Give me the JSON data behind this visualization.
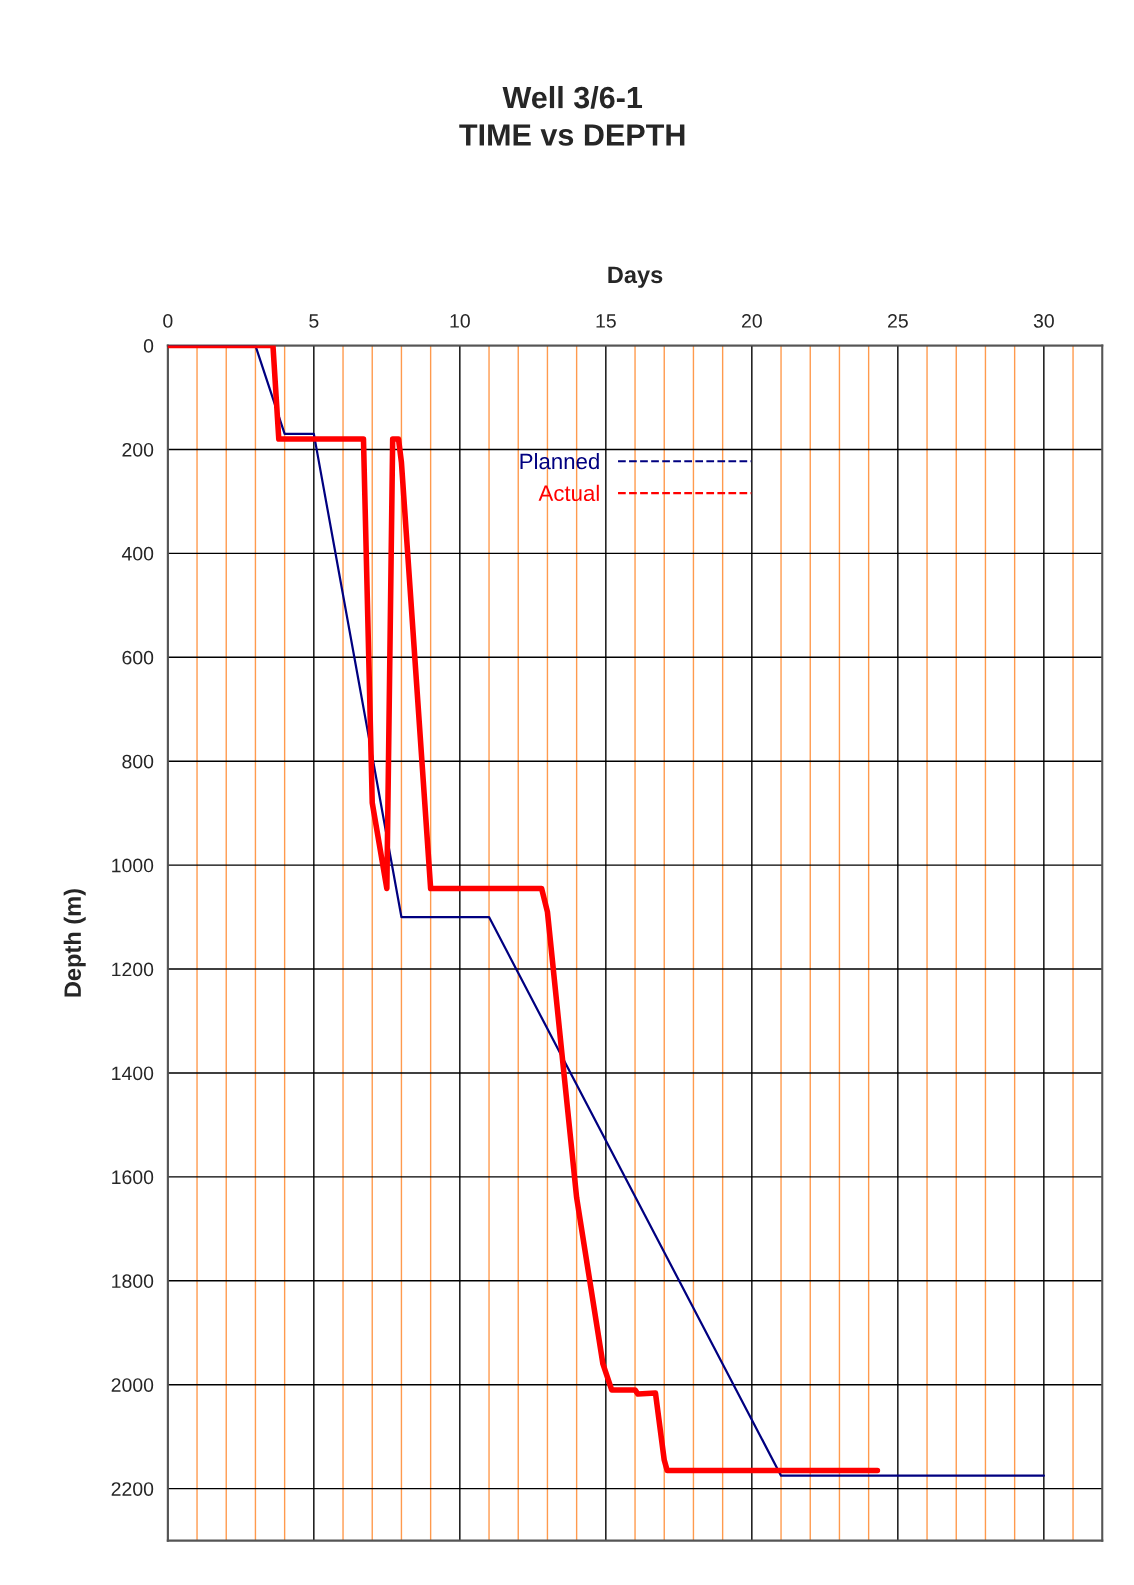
{
  "chart_data": {
    "type": "line",
    "title": "Well 3/6-1\nTIME vs DEPTH",
    "xlabel": "Days",
    "ylabel": "Depth (m)",
    "xlim": [
      0,
      32
    ],
    "ylim": [
      2300,
      0
    ],
    "xticks": [
      0,
      {
        "value": 1,
        "label": null
      },
      {
        "value": 2,
        "label": null
      },
      {
        "value": 3,
        "label": null
      },
      {
        "value": 4,
        "label": null
      },
      5,
      {
        "value": 6,
        "label": null
      },
      {
        "value": 7,
        "label": null
      },
      {
        "value": 8,
        "label": null
      },
      {
        "value": 9,
        "label": null
      },
      10,
      {
        "value": 11,
        "label": null
      },
      {
        "value": 12,
        "label": null
      },
      {
        "value": 13,
        "label": null
      },
      {
        "value": 14,
        "label": null
      },
      15,
      {
        "value": 16,
        "label": null
      },
      {
        "value": 17,
        "label": null
      },
      {
        "value": 18,
        "label": null
      },
      {
        "value": 19,
        "label": null
      },
      20,
      {
        "value": 21,
        "label": null
      },
      {
        "value": 22,
        "label": null
      },
      {
        "value": 23,
        "label": null
      },
      {
        "value": 24,
        "label": null
      },
      25,
      {
        "value": 26,
        "label": null
      },
      {
        "value": 27,
        "label": null
      },
      {
        "value": 28,
        "label": null
      },
      {
        "value": 29,
        "label": null
      },
      30,
      {
        "value": 31,
        "label": null
      }
    ],
    "yticks": [
      0,
      200,
      400,
      600,
      800,
      1000,
      1200,
      1400,
      1600,
      1800,
      2000,
      2200
    ],
    "grid": true,
    "legend": "top",
    "marker": "none",
    "line_style": "solid",
    "series": [
      {
        "name": "Planned",
        "color": "#000080",
        "x": [
          0,
          3,
          4,
          5,
          8,
          11,
          21,
          30
        ],
        "values": [
          0,
          0,
          170,
          170,
          1100,
          1100,
          2175,
          2175
        ]
      },
      {
        "name": "Actual",
        "color": "#ff0000",
        "x": [
          0,
          3.6,
          3.8,
          6.7,
          7.0,
          7.5,
          7.7,
          7.9,
          8.0,
          9.0,
          12.8,
          13.0,
          14.0,
          14.9,
          15.2,
          16.0,
          16.1,
          16.7,
          17.0,
          17.1,
          24.3
        ],
        "values": [
          0,
          0,
          180,
          180,
          880,
          1045,
          180,
          180,
          225,
          1045,
          1045,
          1090,
          1640,
          1960,
          2010,
          2010,
          2018,
          2016,
          2145,
          2165,
          2165
        ]
      }
    ]
  }
}
